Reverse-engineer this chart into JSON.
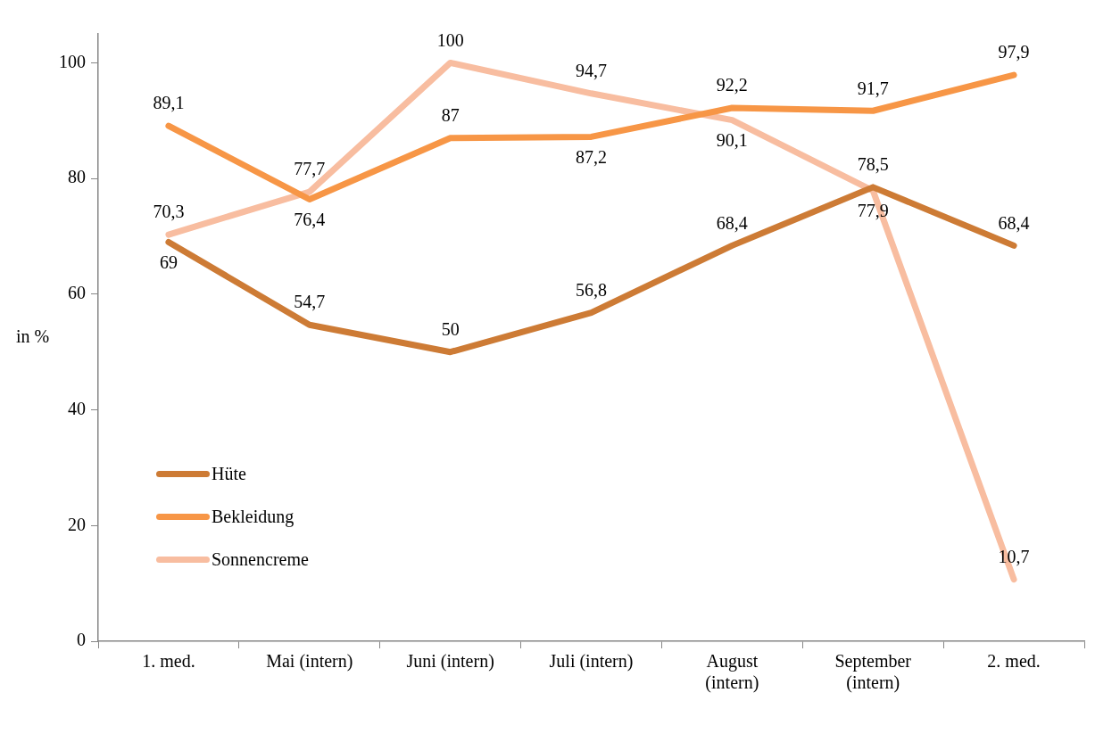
{
  "chart_data": {
    "type": "line",
    "ylabel": "in %",
    "categories": [
      "1. med.",
      "Mai (intern)",
      "Juni (intern)",
      "Juli (intern)",
      "August (intern)",
      "September (intern)",
      "2. med."
    ],
    "series": [
      {
        "name": "Hüte",
        "color": "#cd7b35",
        "values": [
          69,
          54.7,
          50,
          56.8,
          68.4,
          78.5,
          68.4
        ],
        "value_labels": [
          "69",
          "54,7",
          "50",
          "56,8",
          "68,4",
          "78,5",
          "68,4"
        ]
      },
      {
        "name": "Bekleidung",
        "color": "#f79646",
        "values": [
          89.1,
          76.4,
          87,
          87.2,
          92.2,
          91.7,
          97.9
        ],
        "value_labels": [
          "89,1",
          "76,4",
          "87",
          "87,2",
          "92,2",
          "91,7",
          "97,9"
        ]
      },
      {
        "name": "Sonnencreme",
        "color": "#f8bda0",
        "values": [
          70.3,
          77.7,
          100,
          94.7,
          90.1,
          77.9,
          10.7
        ],
        "value_labels": [
          "70,3",
          "77,7",
          "100",
          "94,7",
          "90,1",
          "77,9",
          "10,7"
        ]
      }
    ],
    "ylim": [
      0,
      105
    ],
    "yticks": [
      0,
      20,
      40,
      60,
      80,
      100
    ],
    "grid": false,
    "legend": "left",
    "marker": "none",
    "line_style": "solid"
  }
}
